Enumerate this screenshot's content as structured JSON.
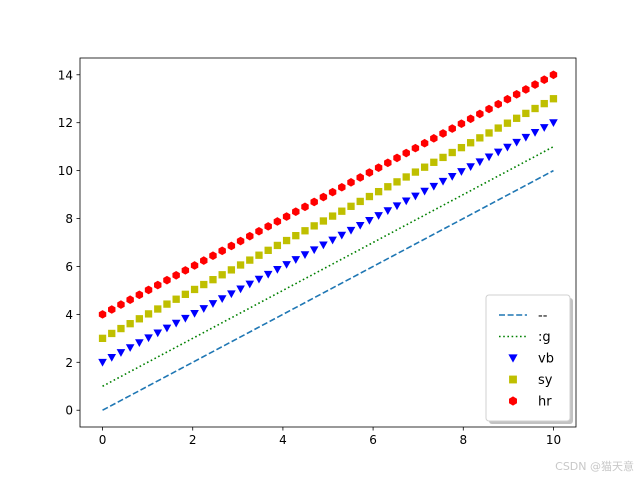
{
  "chart_data": {
    "type": "line",
    "xlim": [
      -0.5,
      10.5
    ],
    "ylim": [
      -0.7,
      14.7
    ],
    "xticks": [
      0,
      2,
      4,
      6,
      8,
      10
    ],
    "yticks": [
      0,
      2,
      4,
      6,
      8,
      10,
      12,
      14
    ],
    "grid": false,
    "legend_position": "lower-right",
    "x_start": 0,
    "x_end": 10,
    "marker_count": 50,
    "series": [
      {
        "name": "--",
        "offset": 0,
        "style": "dashed",
        "marker": "none",
        "color": "#1f77b4"
      },
      {
        "name": ":g",
        "offset": 1,
        "style": "dotted",
        "marker": "none",
        "color": "#008000"
      },
      {
        "name": "vb",
        "offset": 2,
        "style": "none",
        "marker": "triangle-down",
        "color": "#0000ff"
      },
      {
        "name": "sy",
        "offset": 3,
        "style": "none",
        "marker": "square",
        "color": "#bfbf00"
      },
      {
        "name": "hr",
        "offset": 4,
        "style": "none",
        "marker": "hexagon",
        "color": "#ff0000"
      }
    ]
  },
  "watermark": "CSDN @猫天意"
}
